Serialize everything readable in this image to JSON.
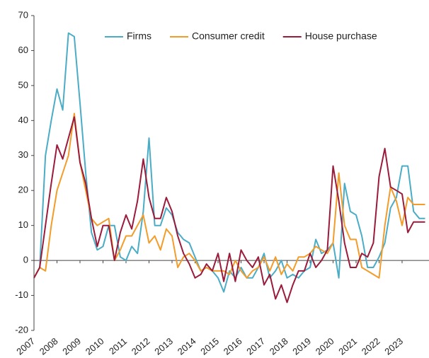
{
  "chart_data": {
    "type": "line",
    "x": [
      2007,
      2007.25,
      2007.5,
      2007.75,
      2008,
      2008.25,
      2008.5,
      2008.75,
      2009,
      2009.25,
      2009.5,
      2009.75,
      2010,
      2010.25,
      2010.5,
      2010.75,
      2011,
      2011.25,
      2011.5,
      2011.75,
      2012,
      2012.25,
      2012.5,
      2012.75,
      2013,
      2013.25,
      2013.5,
      2013.75,
      2014,
      2014.25,
      2014.5,
      2014.75,
      2015,
      2015.25,
      2015.5,
      2015.75,
      2016,
      2016.25,
      2016.5,
      2016.75,
      2017,
      2017.25,
      2017.5,
      2017.75,
      2018,
      2018.25,
      2018.5,
      2018.75,
      2019,
      2019.25,
      2019.5,
      2019.75,
      2020,
      2020.25,
      2020.5,
      2020.75,
      2021,
      2021.25,
      2021.5,
      2021.75,
      2022,
      2022.25,
      2022.5,
      2022.75,
      2023,
      2023.25,
      2023.5,
      2023.75,
      2024
    ],
    "series": [
      {
        "name": "Firms",
        "color": "#4bacc6",
        "values": [
          -5,
          -2,
          30,
          40,
          49,
          43,
          65,
          64,
          45,
          25,
          8,
          3,
          4,
          10,
          10,
          1,
          0,
          4,
          2,
          14,
          35,
          10,
          10,
          15,
          13,
          8,
          6,
          5,
          1,
          -3,
          -2,
          -3,
          -5,
          -9,
          -3,
          -5,
          -2,
          -5,
          -5,
          -2,
          2,
          -5,
          -3,
          0,
          -5,
          -4,
          -5,
          -3,
          -2,
          6,
          2,
          3,
          5,
          -5,
          22,
          14,
          13,
          7,
          -2,
          -2,
          1,
          5,
          15,
          18,
          27,
          27,
          14,
          12,
          12
        ]
      },
      {
        "name": "Consumer credit",
        "color": "#f39c2a",
        "values": [
          -5,
          -2,
          -3,
          10,
          20,
          25,
          30,
          42,
          28,
          20,
          12,
          10,
          11,
          12,
          0,
          3,
          7,
          7,
          10,
          13,
          5,
          7,
          3,
          9,
          7,
          -2,
          1,
          2,
          0,
          -3,
          -2,
          -3,
          -3,
          -3,
          -4,
          0,
          -3,
          -5,
          -3,
          -2,
          1,
          -3,
          1,
          -4,
          -1,
          -3,
          1,
          1,
          2,
          4,
          3,
          2,
          5,
          25,
          10,
          6,
          6,
          -2,
          -3,
          -4,
          -5,
          10,
          21,
          17,
          10,
          18,
          16,
          16,
          16
        ]
      },
      {
        "name": "House purchase",
        "color": "#9b1b3b",
        "values": [
          -5,
          -2,
          10,
          22,
          33,
          29,
          35,
          41,
          28,
          22,
          12,
          4,
          10,
          10,
          0,
          8,
          13,
          9,
          17,
          29,
          18,
          12,
          12,
          18,
          14,
          7,
          2,
          -1,
          -5,
          -4,
          -1,
          -3,
          2,
          -6,
          2,
          -6,
          3,
          0,
          -2,
          1,
          -7,
          -4,
          -11,
          -7,
          -12,
          -7,
          -3,
          -3,
          2,
          -2,
          0,
          3,
          27,
          17,
          5,
          -2,
          -2,
          2,
          1,
          5,
          24,
          32,
          21,
          20,
          19,
          8,
          11,
          11,
          11
        ]
      }
    ],
    "xlim": [
      2007,
      2024.17
    ],
    "xticks": [
      2007,
      2008,
      2009,
      2010,
      2011,
      2012,
      2013,
      2014,
      2015,
      2016,
      2017,
      2018,
      2019,
      2020,
      2021,
      2022,
      2023
    ],
    "ylim": [
      -20,
      70
    ],
    "yticks": [
      -20,
      -10,
      0,
      10,
      20,
      30,
      40,
      50,
      60,
      70
    ],
    "grid": false,
    "legend": "top"
  }
}
